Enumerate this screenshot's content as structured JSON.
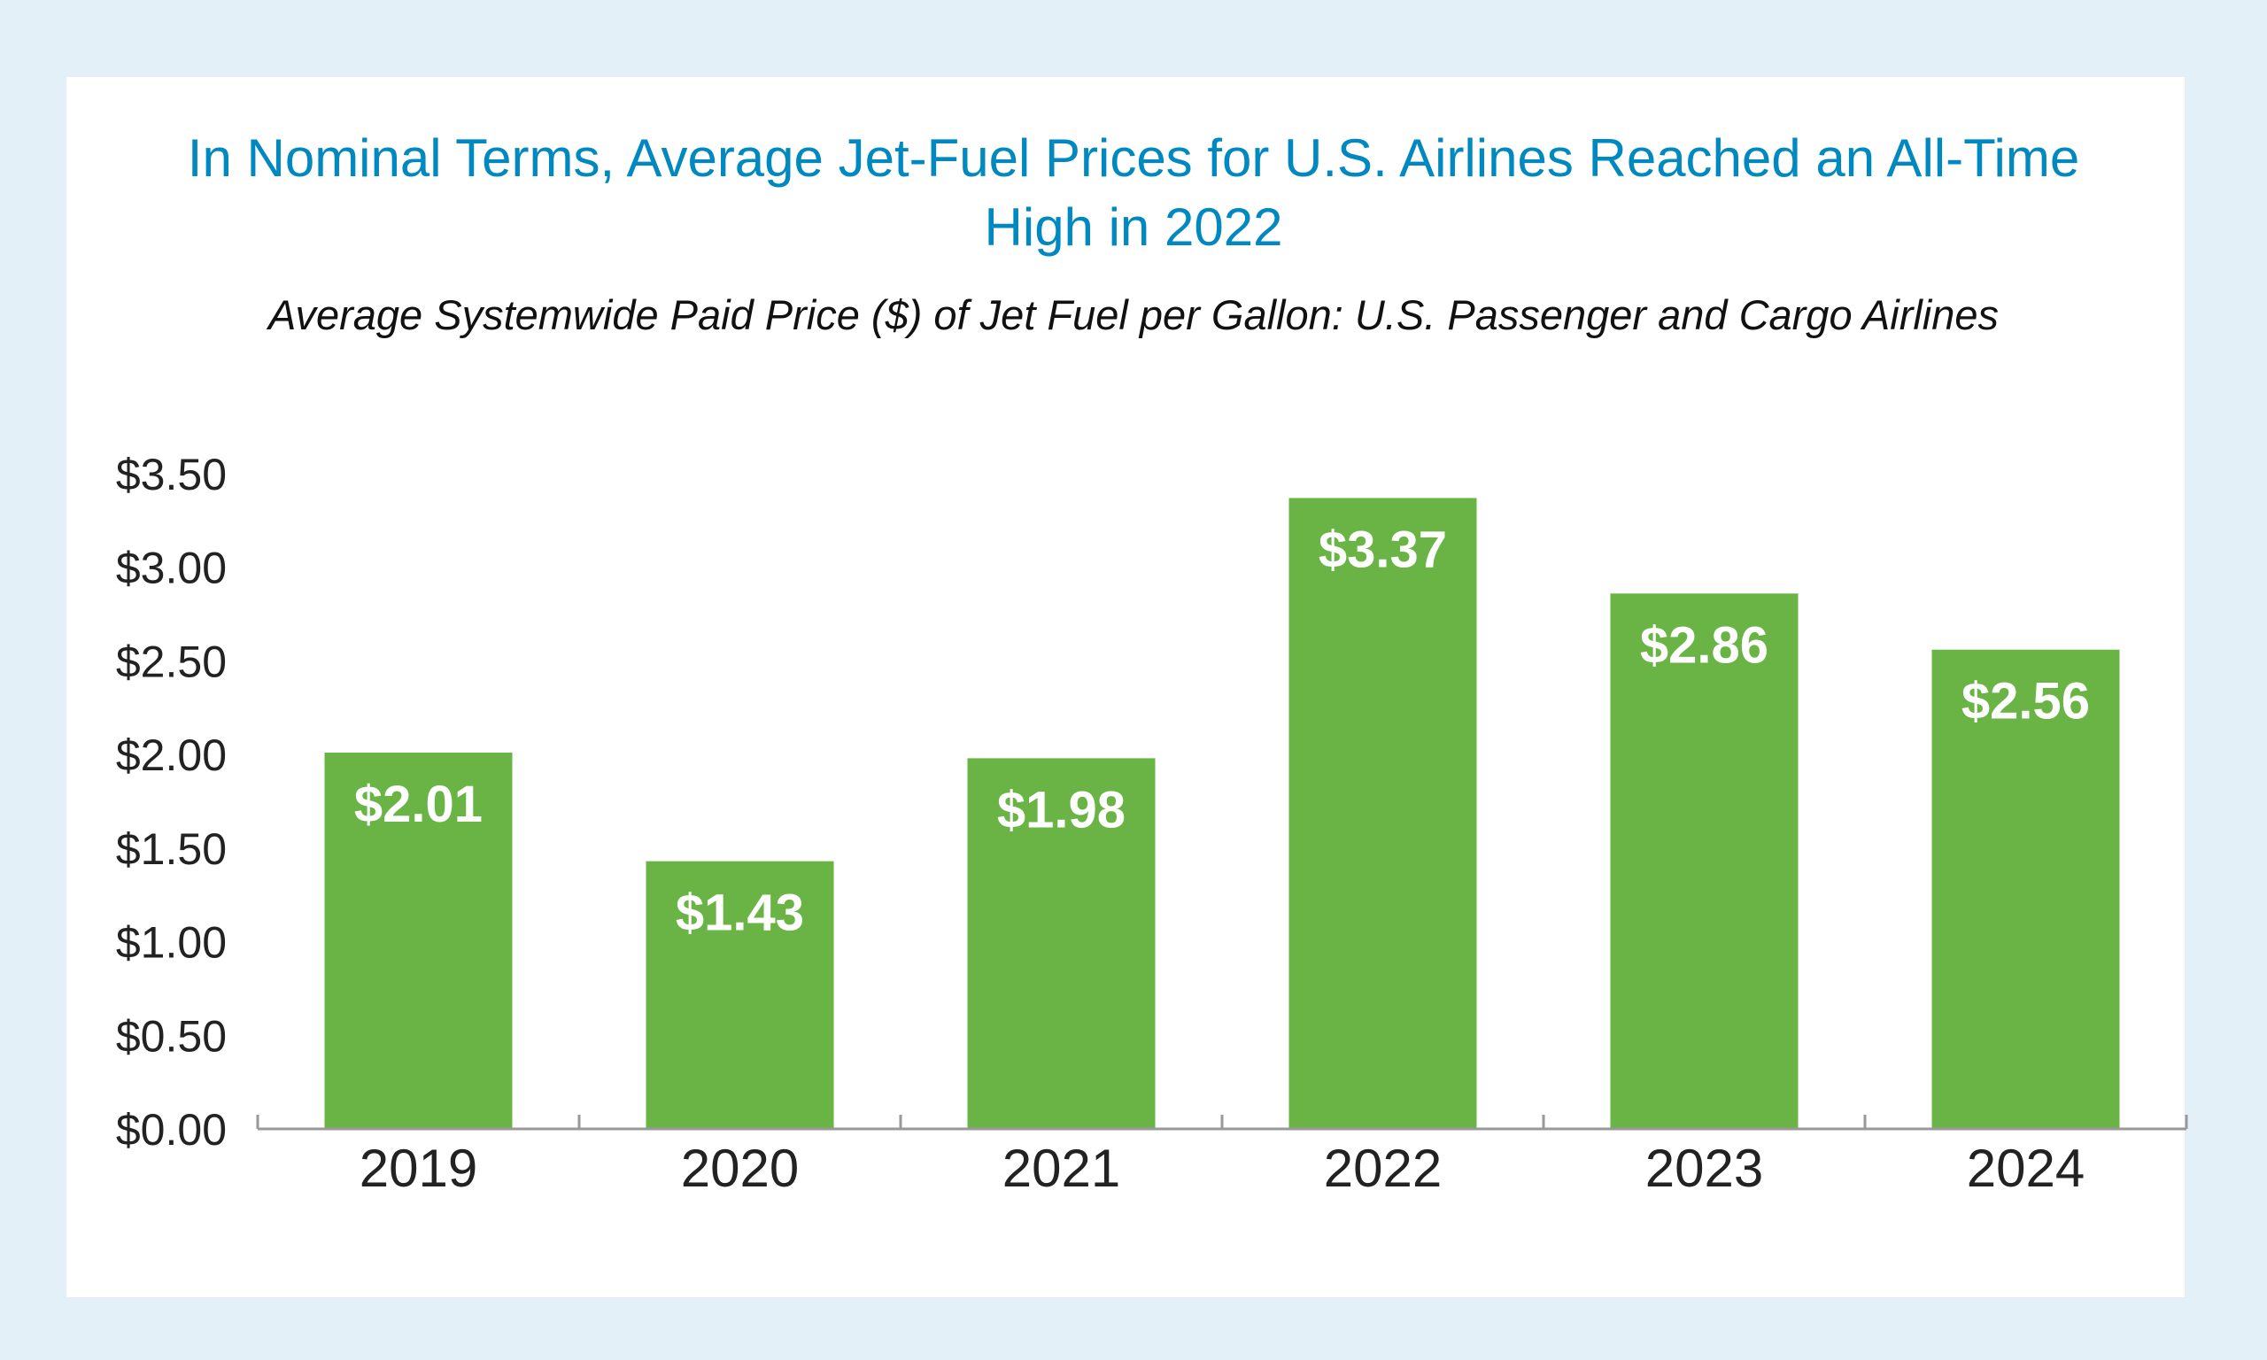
{
  "chart_data": {
    "type": "bar",
    "title": "In Nominal Terms, Average Jet-Fuel Prices for U.S. Airlines Reached an All-Time High in 2022",
    "subtitle": "Average Systemwide Paid Price ($) of Jet Fuel per Gallon: U.S. Passenger and Cargo Airlines",
    "xlabel": "",
    "ylabel": "",
    "categories": [
      "2019",
      "2020",
      "2021",
      "2022",
      "2023",
      "2024"
    ],
    "values": [
      2.01,
      1.43,
      1.98,
      3.37,
      2.86,
      2.56
    ],
    "data_labels": [
      "$2.01",
      "$1.43",
      "$1.98",
      "$3.37",
      "$2.86",
      "$2.56"
    ],
    "ylim": [
      0,
      3.5
    ],
    "yticks": [
      0,
      0.5,
      1.0,
      1.5,
      2.0,
      2.5,
      3.0,
      3.5
    ],
    "ytick_labels": [
      "$0.00",
      "$0.50",
      "$1.00",
      "$1.50",
      "$2.00",
      "$2.50",
      "$3.00",
      "$3.50"
    ],
    "grid": false,
    "legend": "none",
    "colors": {
      "bar": "#6ab446",
      "title": "#0088c0",
      "background": "#e3f0f7",
      "axis": "#999999"
    }
  }
}
